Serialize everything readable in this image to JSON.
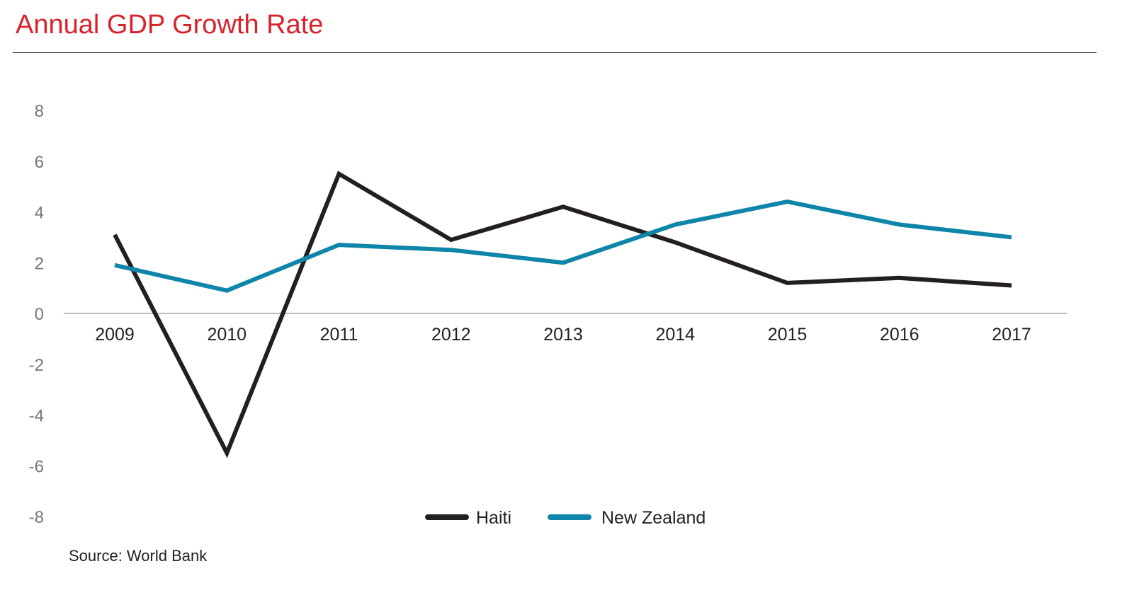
{
  "title": "Annual GDP Growth Rate",
  "source": "Source: World Bank",
  "colors": {
    "title": "#d9232b",
    "haiti": "#231f20",
    "new_zealand": "#0f85aa",
    "axis": "#bbbbbb",
    "tick_label_y": "#777777",
    "tick_label_x": "#222222"
  },
  "chart_data": {
    "type": "line",
    "title": "Annual GDP Growth Rate",
    "xlabel": "",
    "ylabel": "",
    "x": [
      "2009",
      "2010",
      "2011",
      "2012",
      "2013",
      "2014",
      "2015",
      "2016",
      "2017"
    ],
    "ylim": [
      -8,
      8
    ],
    "yticks": [
      8,
      6,
      4,
      2,
      0,
      -2,
      -4,
      -6,
      -8
    ],
    "grid": false,
    "legend_position": "bottom-center",
    "series": [
      {
        "name": "Haiti",
        "color": "#231f20",
        "values": [
          3.1,
          -5.5,
          5.5,
          2.9,
          4.2,
          2.8,
          1.2,
          1.4,
          1.1
        ]
      },
      {
        "name": "New Zealand",
        "color": "#0f85aa",
        "values": [
          1.9,
          0.9,
          2.7,
          2.5,
          2.0,
          3.5,
          4.4,
          3.5,
          3.0
        ]
      }
    ]
  }
}
